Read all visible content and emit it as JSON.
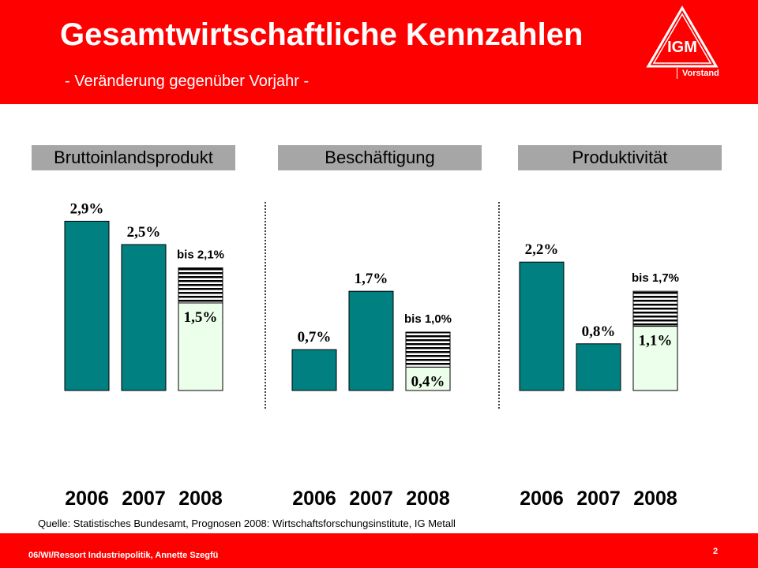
{
  "header": {
    "title": "Gesamtwirtschaftliche Kennzahlen",
    "subtitle": "- Veränderung gegenüber Vorjahr -",
    "logo_letters": "IGM",
    "org_label": "Vorstand",
    "color": "#ff0000"
  },
  "colors": {
    "actual": "#008080",
    "forecast_base": "#ebffeb",
    "forecast_range": "#000000 / #ffffff stripes",
    "panel_label_bg": "#a6a6a6"
  },
  "chart_data": [
    {
      "type": "bar",
      "title": "Bruttoinlandsprodukt",
      "categories": [
        "2006",
        "2007",
        "2008"
      ],
      "values": [
        2.9,
        2.5,
        1.5
      ],
      "labels": [
        "2,9%",
        "2,5%",
        "1,5%"
      ],
      "forecast_upper": 2.1,
      "forecast_label": "bis 2,1%",
      "forecast_index": 2
    },
    {
      "type": "bar",
      "title": "Beschäftigung",
      "categories": [
        "2006",
        "2007",
        "2008"
      ],
      "values": [
        0.7,
        1.7,
        0.4
      ],
      "labels": [
        "0,7%",
        "1,7%",
        "0,4%"
      ],
      "forecast_upper": 1.0,
      "forecast_label": "bis 1,0%",
      "forecast_index": 2
    },
    {
      "type": "bar",
      "title": "Produktivität",
      "categories": [
        "2006",
        "2007",
        "2008"
      ],
      "values": [
        2.2,
        0.8,
        1.1
      ],
      "labels": [
        "2,2%",
        "0,8%",
        "1,1%"
      ],
      "forecast_upper": 1.7,
      "forecast_label": "bis 1,7%",
      "forecast_index": 2
    }
  ],
  "source": "Quelle: Statistisches Bundesamt, Prognosen 2008: Wirtschaftsforschungsinstitute, IG Metall",
  "footer": {
    "text": "06/WI/Ressort Industriepolitik, Annette Szegfü",
    "page_number": "2"
  }
}
